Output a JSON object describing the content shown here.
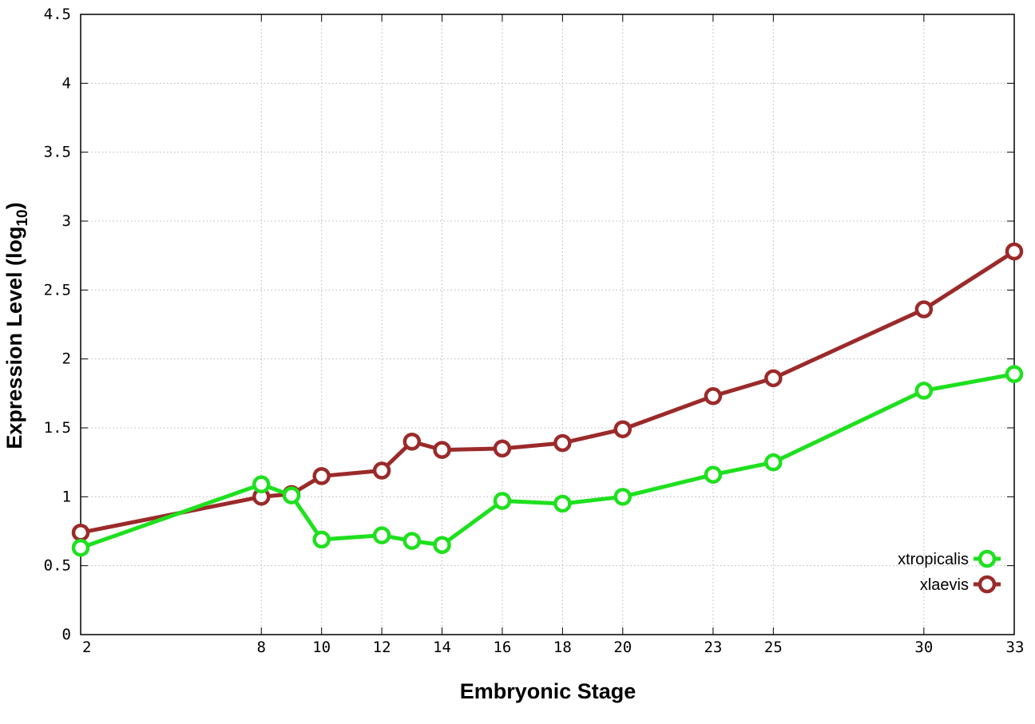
{
  "chart_data": {
    "type": "line",
    "xlabel": "Embryonic Stage",
    "ylabel": "Expression Level (log",
    "ylabel_sub": "10",
    "ylabel_close": ")",
    "xlim": [
      2,
      33
    ],
    "ylim": [
      0,
      4.5
    ],
    "grid": true,
    "legend_position": "bottom-right",
    "x_ticks": [
      2,
      8,
      10,
      12,
      14,
      16,
      18,
      20,
      23,
      25,
      30,
      33
    ],
    "y_ticks": [
      0,
      0.5,
      1,
      1.5,
      2,
      2.5,
      3,
      3.5,
      4,
      4.5
    ],
    "y_tick_labels": [
      "0",
      "0.5",
      "1",
      "1.5",
      "2",
      "2.5",
      "3",
      "3.5",
      "4",
      "4.5"
    ],
    "series": [
      {
        "name": "xtropicalis",
        "color": "#1ee01e",
        "x": [
          2,
          8,
          9,
          10,
          12,
          13,
          14,
          16,
          18,
          20,
          23,
          25,
          30,
          33
        ],
        "y": [
          0.63,
          1.09,
          1.01,
          0.69,
          0.72,
          0.68,
          0.65,
          0.97,
          0.95,
          1.0,
          1.16,
          1.25,
          1.77,
          1.89
        ]
      },
      {
        "name": "xlaevis",
        "color": "#9b2a2a",
        "x": [
          2,
          8,
          9,
          10,
          12,
          13,
          14,
          16,
          18,
          20,
          23,
          25,
          30,
          33
        ],
        "y": [
          0.74,
          1.0,
          1.02,
          1.15,
          1.19,
          1.4,
          1.34,
          1.35,
          1.39,
          1.49,
          1.73,
          1.86,
          2.36,
          2.78
        ]
      }
    ]
  }
}
